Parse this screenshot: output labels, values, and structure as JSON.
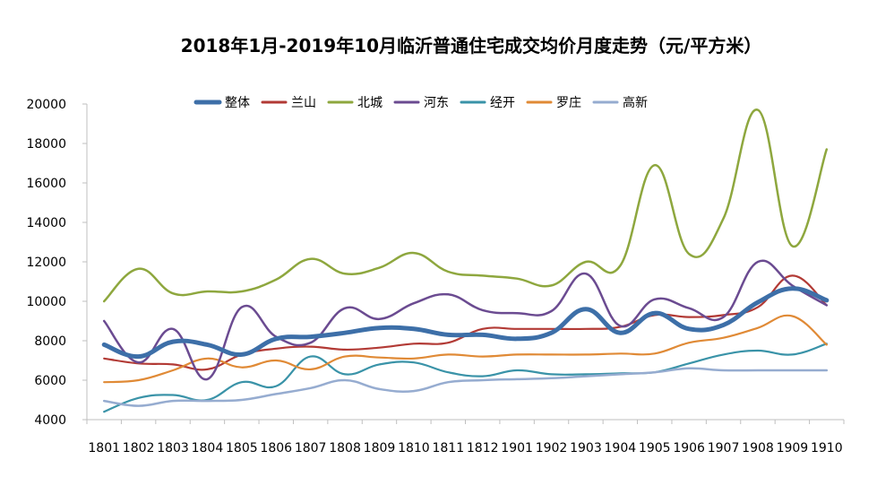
{
  "chart_data": {
    "type": "line",
    "title": "2018年1月-2019年10月临沂普通住宅成交均价月度走势（元/平方米）",
    "xlabel": "",
    "ylabel": "",
    "ylim": [
      4000,
      20000
    ],
    "yticks": [
      4000,
      6000,
      8000,
      10000,
      12000,
      14000,
      16000,
      18000,
      20000
    ],
    "categories": [
      "1801",
      "1802",
      "1803",
      "1804",
      "1805",
      "1806",
      "1807",
      "1808",
      "1809",
      "1810",
      "1811",
      "1812",
      "1901",
      "1902",
      "1903",
      "1904",
      "1905",
      "1906",
      "1907",
      "1908",
      "1909",
      "1910"
    ],
    "legend_position": "top",
    "grid": false,
    "series": [
      {
        "name": "整体",
        "color": "#3d6fa8",
        "width": 5,
        "values": [
          7800,
          7200,
          7950,
          7800,
          7300,
          8100,
          8200,
          8400,
          8650,
          8600,
          8300,
          8300,
          8100,
          8400,
          9600,
          8400,
          9400,
          8600,
          8800,
          9950,
          10650,
          10050
        ]
      },
      {
        "name": "兰山",
        "color": "#b23a35",
        "width": 2.2,
        "values": [
          7100,
          6850,
          6800,
          6550,
          7300,
          7600,
          7700,
          7550,
          7650,
          7850,
          7900,
          8600,
          8600,
          8600,
          8600,
          8700,
          9300,
          9200,
          9300,
          9700,
          11300,
          9800
        ]
      },
      {
        "name": "北城",
        "color": "#8ea73e",
        "width": 2.5,
        "values": [
          10000,
          11650,
          10400,
          10500,
          10500,
          11100,
          12150,
          11400,
          11700,
          12450,
          11500,
          11300,
          11150,
          10800,
          12000,
          11800,
          16900,
          12400,
          14200,
          19700,
          12800,
          17700
        ]
      },
      {
        "name": "河东",
        "color": "#6b4b91",
        "width": 2.5,
        "values": [
          9000,
          6900,
          8600,
          6050,
          9700,
          8200,
          7900,
          9650,
          9100,
          9900,
          10350,
          9550,
          9400,
          9500,
          11400,
          8750,
          10100,
          9650,
          9200,
          12000,
          10800,
          9800
        ]
      },
      {
        "name": "经开",
        "color": "#3a93a8",
        "width": 2.2,
        "values": [
          4400,
          5100,
          5250,
          5000,
          5900,
          5700,
          7200,
          6300,
          6800,
          6900,
          6400,
          6200,
          6500,
          6300,
          6300,
          6350,
          6400,
          6850,
          7300,
          7500,
          7300,
          7850
        ]
      },
      {
        "name": "罗庄",
        "color": "#e08a36",
        "width": 2.2,
        "values": [
          5900,
          6000,
          6500,
          7100,
          6650,
          7000,
          6550,
          7200,
          7150,
          7100,
          7300,
          7200,
          7300,
          7300,
          7300,
          7350,
          7350,
          7900,
          8150,
          8650,
          9250,
          7800
        ]
      },
      {
        "name": "高新",
        "color": "#96acd0",
        "width": 2.5,
        "values": [
          4950,
          4700,
          4950,
          4950,
          5000,
          5300,
          5600,
          6000,
          5550,
          5450,
          5900,
          6000,
          6050,
          6100,
          6200,
          6300,
          6400,
          6600,
          6500,
          6500,
          6500,
          6500
        ]
      }
    ]
  }
}
